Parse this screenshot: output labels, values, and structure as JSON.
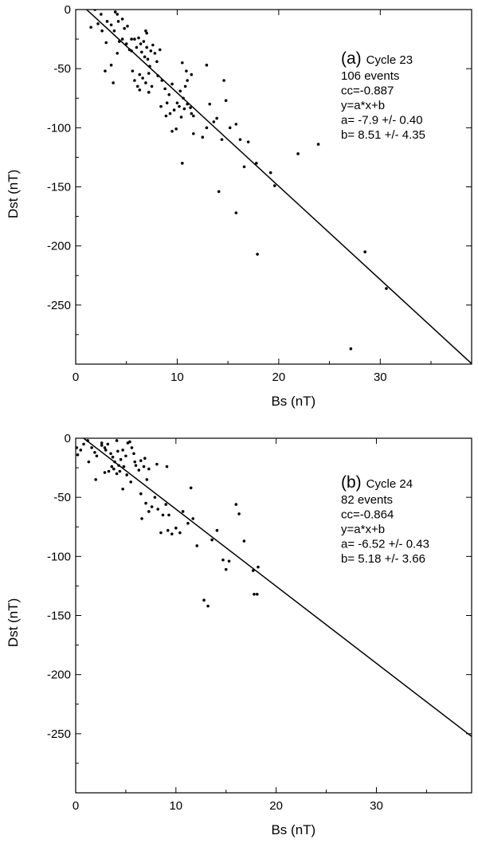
{
  "chart_data": [
    {
      "type": "scatter",
      "title": "",
      "xlabel": "Bs (nT)",
      "ylabel": "Dst (nT)",
      "xlim": [
        0,
        39
      ],
      "ylim": [
        -300,
        0
      ],
      "x_ticks": [
        0,
        10,
        20,
        30
      ],
      "y_ticks": [
        0,
        -50,
        -100,
        -150,
        -200,
        -250
      ],
      "grid": false,
      "annotation": {
        "panel": "(a)",
        "cycle": "Cycle 23",
        "events": "106 events",
        "cc": "cc=-0.887",
        "equation": "y=a*x+b",
        "a": "a= -7.9 +/- 0.40",
        "b": "b= 8.51 +/- 4.35"
      },
      "fit": {
        "slope": -7.9,
        "intercept": 8.51
      },
      "points": [
        [
          1.9,
          0
        ],
        [
          2.5,
          -4
        ],
        [
          2.2,
          -12
        ],
        [
          3.1,
          -10
        ],
        [
          3.5,
          -13
        ],
        [
          3.8,
          -18
        ],
        [
          3.9,
          -2
        ],
        [
          4.1,
          -4
        ],
        [
          4.2,
          -10
        ],
        [
          4.6,
          -8
        ],
        [
          4.8,
          -16
        ],
        [
          5.1,
          -14
        ],
        [
          2.6,
          -18
        ],
        [
          3.0,
          -28
        ],
        [
          4.3,
          -27
        ],
        [
          4.6,
          -25
        ],
        [
          5.0,
          -29
        ],
        [
          5.3,
          -34
        ],
        [
          5.5,
          -25
        ],
        [
          5.8,
          -25
        ],
        [
          6.0,
          -32
        ],
        [
          6.2,
          -24
        ],
        [
          6.4,
          -29
        ],
        [
          6.5,
          -36
        ],
        [
          6.8,
          -40
        ],
        [
          7.0,
          -32
        ],
        [
          7.1,
          -42
        ],
        [
          7.3,
          -48
        ],
        [
          7.6,
          -30
        ],
        [
          7.8,
          -37
        ],
        [
          8.0,
          -44
        ],
        [
          8.3,
          -34
        ],
        [
          6.9,
          -18
        ],
        [
          7.0,
          -20
        ],
        [
          6.7,
          -27
        ],
        [
          7.4,
          -35
        ],
        [
          2.9,
          -52
        ],
        [
          3.5,
          -47
        ],
        [
          3.7,
          -62
        ],
        [
          5.6,
          -52
        ],
        [
          5.8,
          -60
        ],
        [
          6.1,
          -65
        ],
        [
          6.3,
          -55
        ],
        [
          6.6,
          -58
        ],
        [
          6.9,
          -62
        ],
        [
          7.2,
          -54
        ],
        [
          7.5,
          -65
        ],
        [
          8.1,
          -56
        ],
        [
          8.5,
          -60
        ],
        [
          8.8,
          -67
        ],
        [
          9.2,
          -72
        ],
        [
          9.5,
          -63
        ],
        [
          9.7,
          -85
        ],
        [
          10.0,
          -79
        ],
        [
          10.3,
          -69
        ],
        [
          10.6,
          -75
        ],
        [
          10.8,
          -65
        ],
        [
          11.0,
          -80
        ],
        [
          11.3,
          -83
        ],
        [
          11.6,
          -90
        ],
        [
          7.2,
          -70
        ],
        [
          8.4,
          -82
        ],
        [
          9.0,
          -79
        ],
        [
          9.3,
          -88
        ],
        [
          9.5,
          -103
        ],
        [
          9.9,
          -101
        ],
        [
          10.2,
          -82
        ],
        [
          10.4,
          -91
        ],
        [
          10.7,
          -84
        ],
        [
          11.0,
          -60
        ],
        [
          11.4,
          -55
        ],
        [
          11.6,
          -105
        ],
        [
          12.5,
          -108
        ],
        [
          12.9,
          -100
        ],
        [
          13.2,
          -80
        ],
        [
          13.6,
          -95
        ],
        [
          13.9,
          -92
        ],
        [
          14.6,
          -60
        ],
        [
          14.8,
          -77
        ],
        [
          15.2,
          -100
        ],
        [
          15.8,
          -97
        ],
        [
          16.2,
          -110
        ],
        [
          10.5,
          -45
        ],
        [
          10.9,
          -52
        ],
        [
          12.9,
          -47
        ],
        [
          14.4,
          -110
        ],
        [
          16.6,
          -133
        ],
        [
          17.0,
          -112
        ],
        [
          17.8,
          -130
        ],
        [
          19.2,
          -138
        ],
        [
          19.6,
          -149
        ],
        [
          21.9,
          -122
        ],
        [
          23.9,
          -114
        ],
        [
          14.1,
          -154
        ],
        [
          15.8,
          -172
        ],
        [
          17.9,
          -207
        ],
        [
          28.5,
          -205
        ],
        [
          30.6,
          -236
        ],
        [
          27.1,
          -287
        ],
        [
          11.4,
          -88
        ],
        [
          8.9,
          -90
        ],
        [
          10.5,
          -130
        ],
        [
          6.3,
          -68
        ],
        [
          4.1,
          -37
        ],
        [
          5.5,
          -35
        ],
        [
          1.5,
          -15
        ]
      ]
    },
    {
      "type": "scatter",
      "title": "",
      "xlabel": "Bs (nT)",
      "ylabel": "Dst (nT)",
      "xlim": [
        0,
        39.5
      ],
      "ylim": [
        -300,
        0
      ],
      "x_ticks": [
        0,
        10,
        20,
        30
      ],
      "y_ticks": [
        0,
        -50,
        -100,
        -150,
        -200,
        -250
      ],
      "grid": false,
      "annotation": {
        "panel": "(b)",
        "cycle": "Cycle 24",
        "events": "82 events",
        "cc": "cc=-0.864",
        "equation": "y=a*x+b",
        "a": "a= -6.52 +/- 0.43",
        "b": "b= 5.18 +/- 3.66"
      },
      "fit": {
        "slope": -6.52,
        "intercept": 5.18
      },
      "points": [
        [
          0.1,
          -8
        ],
        [
          0.2,
          -14
        ],
        [
          0.5,
          -10
        ],
        [
          0.8,
          -5
        ],
        [
          1.2,
          -2
        ],
        [
          1.6,
          -8
        ],
        [
          1.9,
          -12
        ],
        [
          2.1,
          -15
        ],
        [
          2.6,
          -6
        ],
        [
          2.9,
          -8
        ],
        [
          3.2,
          -5
        ],
        [
          3.5,
          -13
        ],
        [
          3.7,
          -16
        ],
        [
          3.9,
          -20
        ],
        [
          4.1,
          -2
        ],
        [
          4.3,
          -23
        ],
        [
          4.5,
          -18
        ],
        [
          4.7,
          -10
        ],
        [
          5.0,
          -15
        ],
        [
          5.2,
          -4
        ],
        [
          5.4,
          -3
        ],
        [
          5.6,
          -8
        ],
        [
          5.8,
          -13
        ],
        [
          6.0,
          -23
        ],
        [
          6.3,
          -27
        ],
        [
          6.5,
          -19
        ],
        [
          6.8,
          -24
        ],
        [
          7.1,
          -35
        ],
        [
          7.3,
          -26
        ],
        [
          1.3,
          -20
        ],
        [
          2.0,
          -35
        ],
        [
          2.9,
          -29
        ],
        [
          3.3,
          -28
        ],
        [
          3.6,
          -24
        ],
        [
          3.8,
          -26
        ],
        [
          4.1,
          -30
        ],
        [
          4.4,
          -28
        ],
        [
          4.8,
          -24
        ],
        [
          5.1,
          -31
        ],
        [
          5.5,
          -37
        ],
        [
          4.7,
          -43
        ],
        [
          6.5,
          -47
        ],
        [
          6.6,
          -68
        ],
        [
          7.0,
          -55
        ],
        [
          7.3,
          -62
        ],
        [
          7.6,
          -58
        ],
        [
          7.9,
          -50
        ],
        [
          8.2,
          -60
        ],
        [
          8.5,
          -80
        ],
        [
          8.7,
          -65
        ],
        [
          9.0,
          -56
        ],
        [
          9.3,
          -65
        ],
        [
          9.6,
          -81
        ],
        [
          10.0,
          -76
        ],
        [
          10.4,
          -80
        ],
        [
          10.7,
          -62
        ],
        [
          11.2,
          -72
        ],
        [
          11.5,
          -42
        ],
        [
          11.7,
          -68
        ],
        [
          12.1,
          -91
        ],
        [
          12.8,
          -137
        ],
        [
          13.2,
          -142
        ],
        [
          13.6,
          -86
        ],
        [
          14.1,
          -78
        ],
        [
          14.7,
          -103
        ],
        [
          15.0,
          -111
        ],
        [
          15.3,
          -104
        ],
        [
          16.0,
          -56
        ],
        [
          16.3,
          -64
        ],
        [
          16.8,
          -87
        ],
        [
          17.7,
          -112
        ],
        [
          17.8,
          -132
        ],
        [
          18.1,
          -132
        ],
        [
          18.2,
          -109
        ],
        [
          9.2,
          -78
        ],
        [
          8.1,
          -22
        ],
        [
          9.1,
          -24
        ],
        [
          6.9,
          -17
        ],
        [
          2.6,
          -4
        ],
        [
          3.0,
          -10
        ],
        [
          5.9,
          -20
        ],
        [
          4.2,
          -11
        ]
      ]
    }
  ]
}
